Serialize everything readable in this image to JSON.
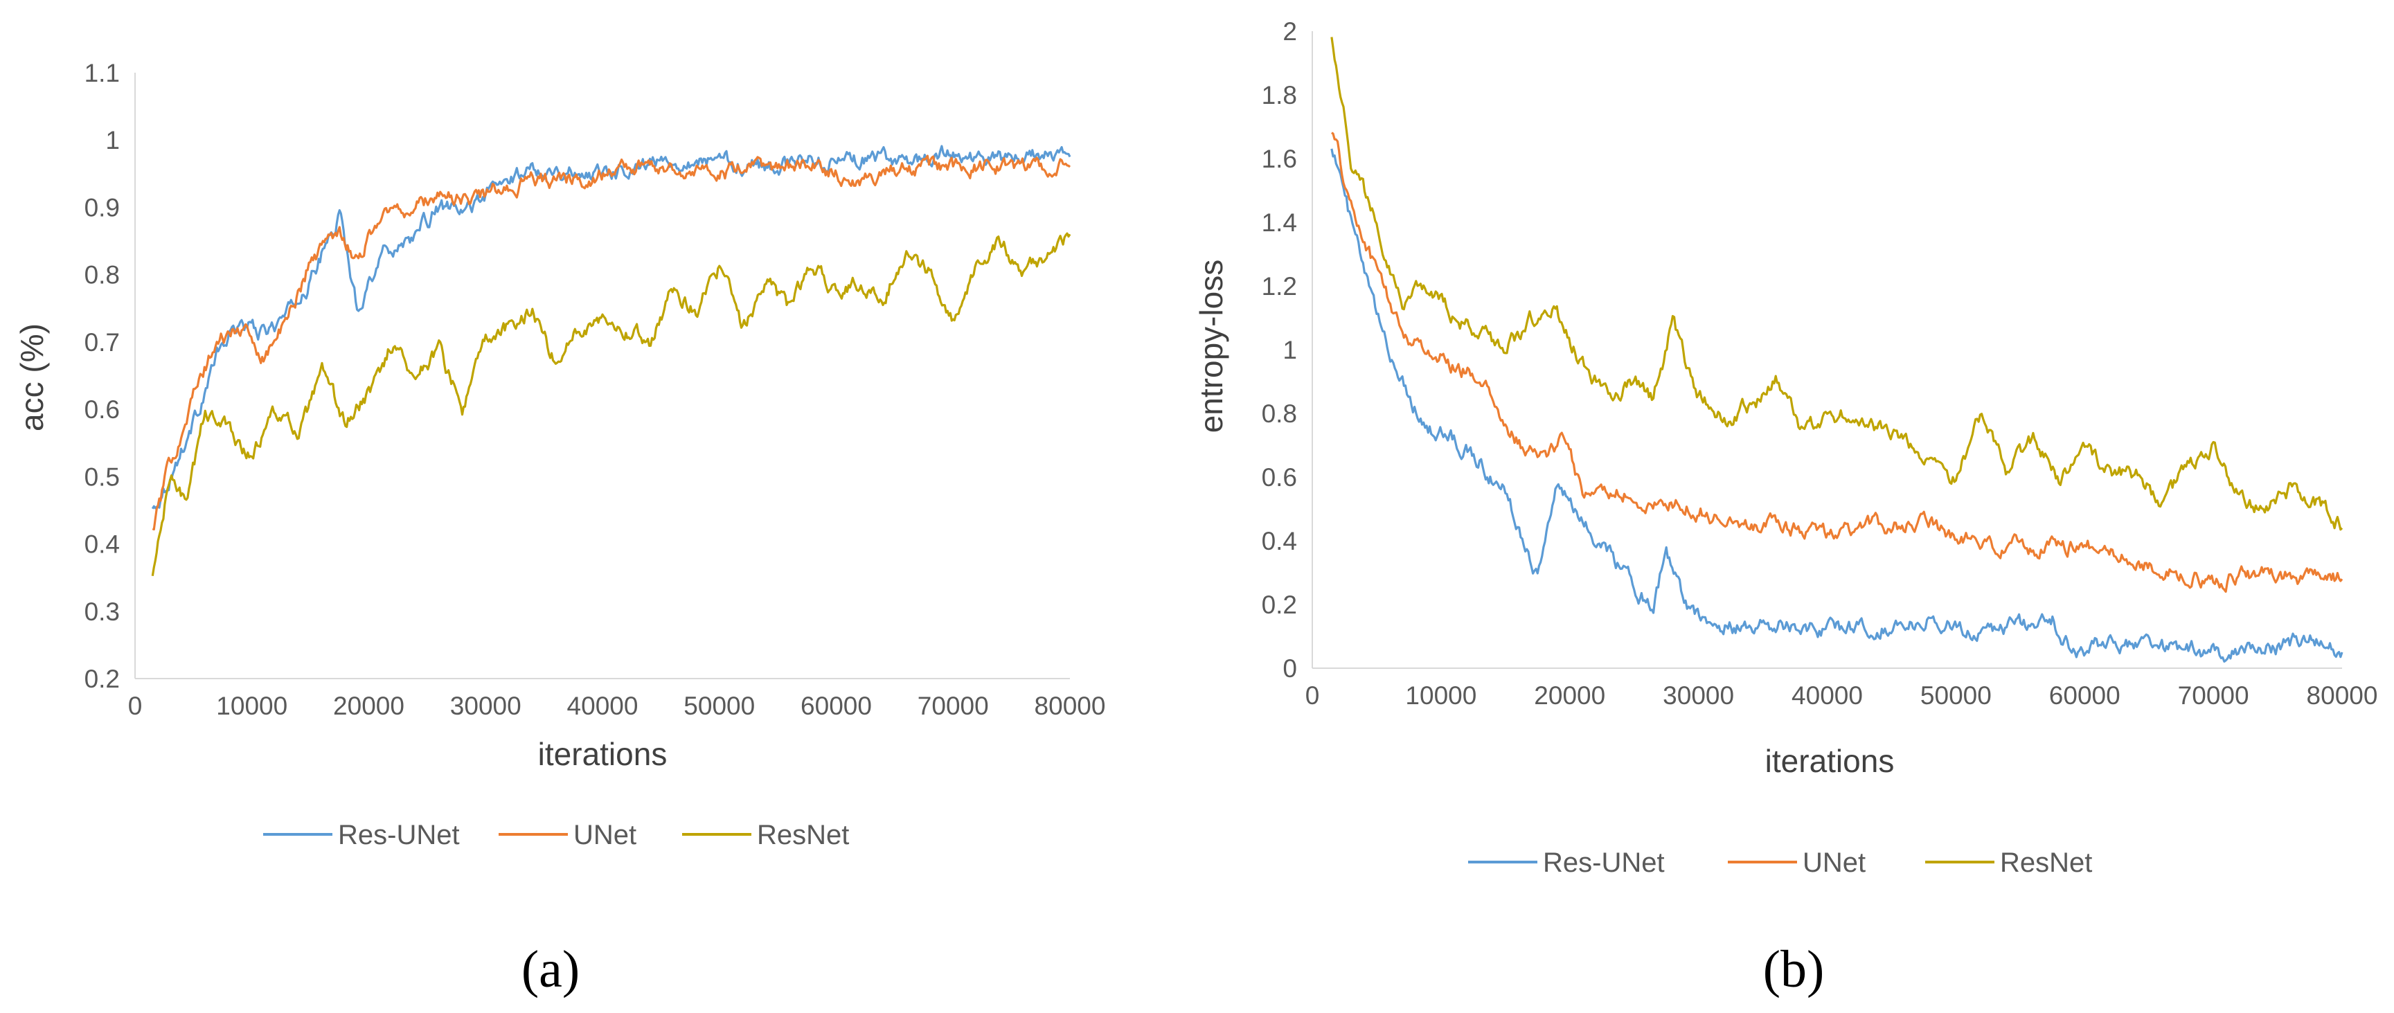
{
  "chart_data": [
    {
      "id": "a",
      "type": "line",
      "caption": "(a)",
      "title": "",
      "xlabel": "iterations",
      "ylabel": "acc (%)",
      "xlim": [
        0,
        80000
      ],
      "ylim": [
        0.2,
        1.1
      ],
      "x_ticks": [
        "0",
        "10000",
        "20000",
        "30000",
        "40000",
        "50000",
        "60000",
        "70000",
        "80000"
      ],
      "y_ticks": [
        "0.2",
        "0.3",
        "0.4",
        "0.5",
        "0.6",
        "0.7",
        "0.8",
        "0.9",
        "1",
        "1.1"
      ],
      "legend": [
        "Res-UNet",
        "UNet",
        "ResNet"
      ],
      "series": [
        {
          "name": "Res-UNet",
          "color": "#5b9bd5",
          "x": [
            1500,
            3000,
            5000,
            7000,
            9000,
            11000,
            13000,
            15000,
            17500,
            19000,
            21000,
            24000,
            26000,
            28000,
            30000,
            34000,
            38000,
            42000,
            46000,
            50000,
            54000,
            58000,
            62000,
            66000,
            70000,
            74000,
            78000,
            80000
          ],
          "y": [
            0.45,
            0.5,
            0.58,
            0.68,
            0.73,
            0.71,
            0.74,
            0.79,
            0.89,
            0.75,
            0.83,
            0.86,
            0.9,
            0.89,
            0.92,
            0.96,
            0.95,
            0.96,
            0.97,
            0.97,
            0.96,
            0.97,
            0.97,
            0.97,
            0.98,
            0.97,
            0.98,
            0.975
          ]
        },
        {
          "name": "UNet",
          "color": "#ed7d31",
          "x": [
            1500,
            3000,
            5000,
            7000,
            9000,
            11000,
            13000,
            15000,
            17500,
            19000,
            21000,
            24000,
            26000,
            28000,
            30000,
            34000,
            38000,
            42000,
            46000,
            50000,
            54000,
            58000,
            62000,
            66000,
            70000,
            74000,
            78000,
            80000
          ],
          "y": [
            0.42,
            0.52,
            0.62,
            0.7,
            0.72,
            0.68,
            0.73,
            0.82,
            0.87,
            0.82,
            0.89,
            0.9,
            0.92,
            0.91,
            0.92,
            0.94,
            0.94,
            0.96,
            0.96,
            0.95,
            0.96,
            0.96,
            0.94,
            0.96,
            0.96,
            0.96,
            0.96,
            0.96
          ]
        },
        {
          "name": "ResNet",
          "color": "#bfa400",
          "x": [
            1500,
            3000,
            4500,
            6000,
            8000,
            10000,
            12000,
            14000,
            16000,
            18000,
            20000,
            22000,
            24000,
            26000,
            28000,
            30000,
            32000,
            34000,
            36000,
            38000,
            40000,
            42000,
            44000,
            46000,
            48000,
            50000,
            52000,
            54000,
            56000,
            58000,
            60000,
            62000,
            64000,
            66000,
            68000,
            70000,
            72000,
            74000,
            76000,
            78000,
            80000
          ],
          "y": [
            0.35,
            0.5,
            0.46,
            0.6,
            0.57,
            0.53,
            0.6,
            0.56,
            0.65,
            0.58,
            0.62,
            0.7,
            0.65,
            0.69,
            0.6,
            0.7,
            0.72,
            0.75,
            0.67,
            0.72,
            0.74,
            0.72,
            0.7,
            0.78,
            0.75,
            0.81,
            0.72,
            0.79,
            0.75,
            0.82,
            0.77,
            0.79,
            0.76,
            0.84,
            0.8,
            0.73,
            0.81,
            0.85,
            0.8,
            0.83,
            0.86
          ]
        }
      ]
    },
    {
      "id": "b",
      "type": "line",
      "caption": "(b)",
      "title": "",
      "xlabel": "iterations",
      "ylabel": "entropy-loss",
      "xlim": [
        0,
        80000
      ],
      "ylim": [
        0,
        2
      ],
      "x_ticks": [
        "0",
        "10000",
        "20000",
        "30000",
        "40000",
        "50000",
        "60000",
        "70000",
        "80000"
      ],
      "y_ticks": [
        "0",
        "0.2",
        "0.4",
        "0.6",
        "0.8",
        "1",
        "1.2",
        "1.4",
        "1.6",
        "1.8",
        "2"
      ],
      "legend": [
        "Res-UNet",
        "UNet",
        "ResNet"
      ],
      "series": [
        {
          "name": "Res-UNet",
          "color": "#5b9bd5",
          "x": [
            1500,
            3000,
            5000,
            7000,
            9000,
            11000,
            13000,
            15000,
            17500,
            19000,
            21000,
            23000,
            25000,
            26500,
            27500,
            29000,
            31000,
            33000,
            36000,
            40000,
            44000,
            48000,
            52000,
            56000,
            57500,
            59000,
            62000,
            66000,
            70000,
            74000,
            78000,
            80000
          ],
          "y": [
            1.65,
            1.4,
            1.1,
            0.9,
            0.75,
            0.72,
            0.65,
            0.55,
            0.3,
            0.58,
            0.45,
            0.38,
            0.25,
            0.2,
            0.37,
            0.2,
            0.15,
            0.13,
            0.14,
            0.12,
            0.13,
            0.15,
            0.12,
            0.14,
            0.16,
            0.05,
            0.08,
            0.07,
            0.05,
            0.06,
            0.09,
            0.05
          ]
        },
        {
          "name": "UNet",
          "color": "#ed7d31",
          "x": [
            1500,
            3000,
            5000,
            7000,
            9000,
            11000,
            13000,
            15000,
            17500,
            19500,
            21000,
            24000,
            26000,
            28000,
            31000,
            34000,
            38000,
            41000,
            44000,
            48000,
            52000,
            56000,
            60000,
            63000,
            66000,
            70000,
            74000,
            78000,
            80000
          ],
          "y": [
            1.7,
            1.45,
            1.25,
            1.05,
            1.0,
            0.95,
            0.92,
            0.75,
            0.65,
            0.72,
            0.55,
            0.56,
            0.5,
            0.52,
            0.48,
            0.46,
            0.44,
            0.42,
            0.45,
            0.45,
            0.39,
            0.38,
            0.39,
            0.35,
            0.3,
            0.28,
            0.29,
            0.28,
            0.28
          ]
        },
        {
          "name": "ResNet",
          "color": "#bfa400",
          "x": [
            1500,
            3000,
            5000,
            7000,
            9000,
            11000,
            13000,
            15000,
            17000,
            19000,
            21000,
            23000,
            25000,
            26500,
            28000,
            30000,
            32000,
            34000,
            36000,
            38000,
            40000,
            42000,
            44000,
            46000,
            48000,
            50000,
            52000,
            54000,
            56000,
            58000,
            60000,
            62000,
            64000,
            66000,
            68000,
            70000,
            72000,
            74000,
            76000,
            78000,
            80000
          ],
          "y": [
            2.0,
            1.6,
            1.4,
            1.15,
            1.2,
            1.1,
            1.05,
            1.0,
            1.1,
            1.12,
            0.95,
            0.85,
            0.9,
            0.85,
            1.08,
            0.85,
            0.78,
            0.82,
            0.9,
            0.75,
            0.78,
            0.8,
            0.75,
            0.7,
            0.65,
            0.6,
            0.8,
            0.62,
            0.72,
            0.58,
            0.68,
            0.62,
            0.6,
            0.52,
            0.62,
            0.7,
            0.55,
            0.48,
            0.56,
            0.52,
            0.44
          ]
        }
      ]
    }
  ]
}
